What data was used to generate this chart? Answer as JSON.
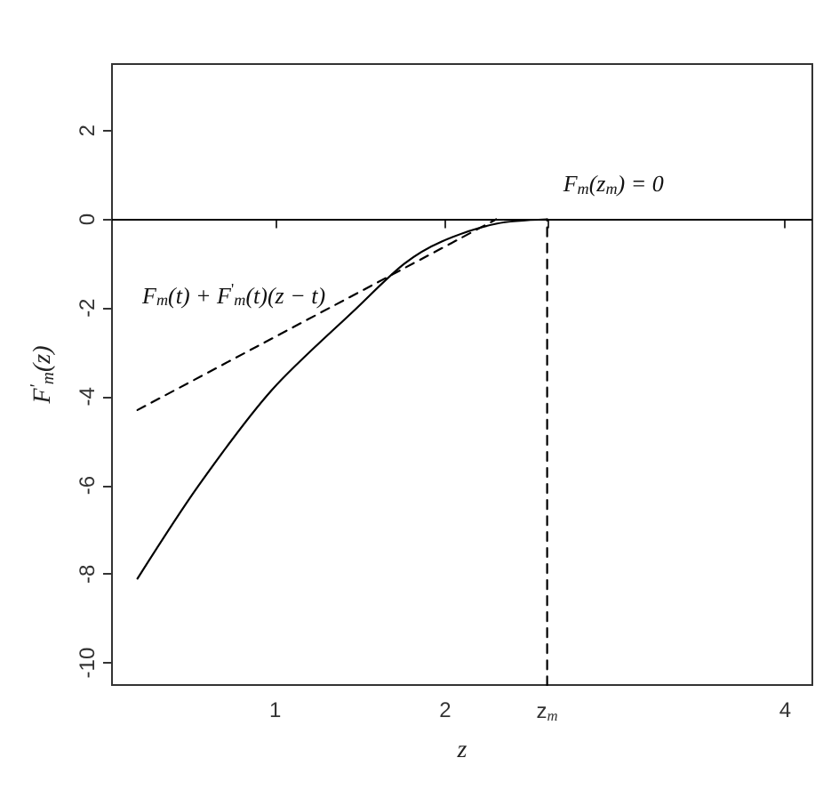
{
  "chart_data": {
    "type": "line",
    "xlabel": "z",
    "ylabel": "F$^{'}$$_{m}$(z)",
    "xlim": [
      0.04,
      4.16
    ],
    "ylim": [
      -10.5,
      3.5
    ],
    "xticks": [
      1,
      2,
      {
        "value": 2.6,
        "label": "z$_{m}$"
      },
      4
    ],
    "yticks": [
      -10,
      -8,
      -6,
      -4,
      -2,
      0,
      2
    ],
    "grid": false,
    "marker": "none",
    "series": [
      {
        "color": "#000000",
        "line_style": "solid",
        "x": [
          0.19,
          0.55,
          0.98,
          1.48,
          1.76,
          1.98,
          2.3,
          2.6
        ],
        "values": [
          -8.1,
          -6,
          -3.85,
          -2,
          -1,
          -0.5,
          -0.1,
          0
        ]
      },
      {
        "color": "#000000",
        "line_style": "dashed",
        "x": [
          0.19,
          2.3
        ],
        "values": [
          -4.3,
          0
        ]
      },
      {
        "color": "#000000",
        "line_style": "dashed",
        "x": [
          2.6,
          2.6
        ],
        "values": [
          -10.5,
          0
        ]
      }
    ],
    "ref_lines": [
      {
        "axis": "y",
        "value": 0,
        "color": "#000000",
        "line_style": "solid"
      }
    ],
    "annotations": [
      {
        "text": "F$_{m}$(z$_{m}$) = 0",
        "x": 2.6,
        "y": 0
      },
      "F$_{m}$(t) + F$^{'}$$_{m}$(t)(z − t)"
    ]
  }
}
